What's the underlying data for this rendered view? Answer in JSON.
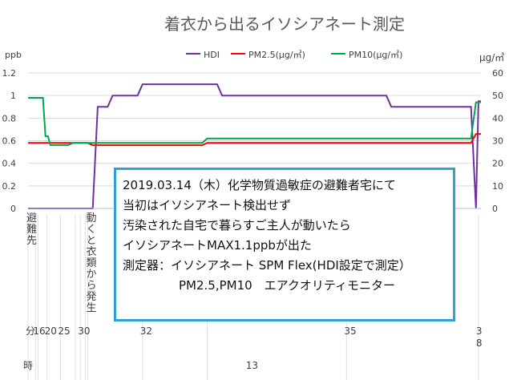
{
  "chart_data": {
    "type": "line",
    "title": "着衣から出るイソシアネート測定",
    "left_axis": {
      "unit": "ppb",
      "ylim": [
        0,
        1.2
      ],
      "ticks": [
        "0",
        "0.2",
        "0.4",
        "0.6",
        "0.8",
        "1",
        "1.2"
      ]
    },
    "right_axis": {
      "unit": "μg/㎥",
      "ylim": [
        0,
        60
      ],
      "ticks": [
        "0",
        "10",
        "20",
        "30",
        "40",
        "50",
        "60"
      ]
    },
    "legend_position": "top",
    "series": [
      {
        "name": "HDI",
        "axis": "left",
        "color": "#7030a0",
        "points": [
          [
            0,
            0
          ],
          [
            13,
            0
          ],
          [
            14,
            0.9
          ],
          [
            16,
            0.9
          ],
          [
            17,
            1.0
          ],
          [
            22,
            1.0
          ],
          [
            23,
            1.1
          ],
          [
            38,
            1.1
          ],
          [
            39,
            1.0
          ],
          [
            72,
            1.0
          ],
          [
            73,
            0.9
          ],
          [
            89,
            0.9
          ],
          [
            90,
            0.0
          ],
          [
            90.5,
            0.95
          ],
          [
            91,
            0.95
          ]
        ]
      },
      {
        "name": "PM2.5(μg/㎥)",
        "axis": "right",
        "color": "#ff0000",
        "points": [
          [
            0,
            29
          ],
          [
            12,
            29
          ],
          [
            13,
            28
          ],
          [
            35,
            28
          ],
          [
            36,
            29
          ],
          [
            89,
            29
          ],
          [
            90,
            33
          ],
          [
            91,
            33
          ]
        ]
      },
      {
        "name": "PM10(μg/㎥)",
        "axis": "right",
        "color": "#00a650",
        "points": [
          [
            0,
            49
          ],
          [
            3,
            49
          ],
          [
            3.5,
            32
          ],
          [
            4,
            32
          ],
          [
            4.5,
            28
          ],
          [
            8,
            28
          ],
          [
            9,
            29
          ],
          [
            35,
            29
          ],
          [
            36,
            31
          ],
          [
            89,
            31
          ],
          [
            90,
            47
          ],
          [
            91,
            47
          ]
        ]
      }
    ],
    "x_minute_labels": [
      {
        "text": "分",
        "pos": 0
      },
      {
        "text": "16",
        "pos": 1.5
      },
      {
        "text": "20",
        "pos": 3.8
      },
      {
        "text": "25",
        "pos": 6.5
      },
      {
        "text": "30",
        "pos": 10.5
      },
      {
        "text": "32",
        "pos": 23
      },
      {
        "text": "35",
        "pos": 64
      },
      {
        "text": "3",
        "pos": 90.5
      },
      {
        "text": "8",
        "pos": 90.5
      }
    ],
    "x_hour_labels": [
      {
        "text": "時",
        "pos": 0
      },
      {
        "text": "13",
        "pos": 45
      }
    ],
    "event_labels": [
      {
        "text": "避難先",
        "pos": 0
      },
      {
        "text": "動くと衣類から発生",
        "pos": 12
      }
    ]
  },
  "annotation": {
    "lines": [
      "2019.03.14（木）化学物質過敏症の避難者宅にて",
      "当初はイソシアネート検出せず",
      "汚染された自宅で暮らすご主人が動いたら",
      "イソシアネートMAX1.1ppbが出た",
      "測定器：イソシアネート SPM Flex(HDI設定で測定）",
      "PM2.5,PM10　エアクオリティモニター"
    ]
  }
}
